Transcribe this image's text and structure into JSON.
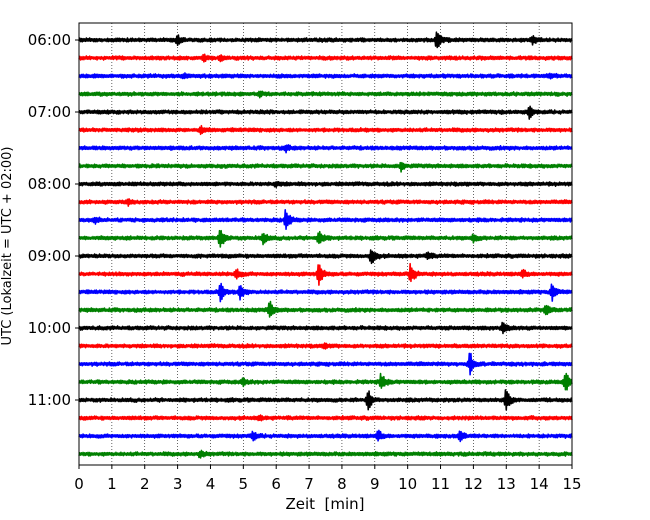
{
  "chart_data": {
    "type": "line",
    "title": "",
    "xlabel": "Zeit  [min]",
    "ylabel": "UTC (Lokalzeit = UTC + 02:00)",
    "xlim": [
      0,
      15
    ],
    "x_ticks": [
      "0",
      "1",
      "2",
      "3",
      "4",
      "5",
      "6",
      "7",
      "8",
      "9",
      "10",
      "11",
      "12",
      "13",
      "14",
      "15"
    ],
    "y_tick_labels": [
      "06:00",
      "07:00",
      "08:00",
      "09:00",
      "10:00",
      "11:00"
    ],
    "y_tick_traces": [
      0,
      4,
      8,
      12,
      16,
      20
    ],
    "grid": "vertical dotted at each minute",
    "legend": "none",
    "trace_colors": [
      "#000000",
      "#ff0000",
      "#0000ff",
      "#008000"
    ],
    "series": [
      {
        "start": "06:00",
        "color": "#000000",
        "events": [
          [
            3.0,
            0.35
          ],
          [
            10.9,
            1.0
          ],
          [
            13.8,
            0.35
          ]
        ]
      },
      {
        "start": "06:15",
        "color": "#ff0000",
        "events": [
          [
            3.8,
            0.3
          ],
          [
            4.3,
            0.25
          ]
        ]
      },
      {
        "start": "06:30",
        "color": "#0000ff",
        "events": [
          [
            3.2,
            0.2
          ],
          [
            14.3,
            0.2
          ]
        ]
      },
      {
        "start": "06:45",
        "color": "#008000",
        "events": [
          [
            5.5,
            0.15
          ]
        ]
      },
      {
        "start": "07:00",
        "color": "#000000",
        "events": [
          [
            13.7,
            0.6
          ]
        ]
      },
      {
        "start": "07:15",
        "color": "#ff0000",
        "events": [
          [
            3.7,
            0.3
          ]
        ]
      },
      {
        "start": "07:30",
        "color": "#0000ff",
        "events": [
          [
            6.3,
            0.25
          ]
        ]
      },
      {
        "start": "07:45",
        "color": "#008000",
        "events": [
          [
            9.8,
            0.35
          ]
        ]
      },
      {
        "start": "08:00",
        "color": "#000000",
        "events": [
          [
            6.0,
            0.2
          ]
        ]
      },
      {
        "start": "08:15",
        "color": "#ff0000",
        "events": [
          [
            1.5,
            0.2
          ]
        ]
      },
      {
        "start": "08:30",
        "color": "#0000ff",
        "events": [
          [
            0.5,
            0.25
          ],
          [
            6.3,
            0.9
          ]
        ]
      },
      {
        "start": "08:45",
        "color": "#008000",
        "events": [
          [
            4.3,
            0.9
          ],
          [
            5.6,
            0.55
          ],
          [
            7.3,
            0.65
          ],
          [
            12.0,
            0.3
          ]
        ]
      },
      {
        "start": "09:00",
        "color": "#000000",
        "events": [
          [
            8.9,
            0.8
          ],
          [
            10.6,
            0.3
          ]
        ]
      },
      {
        "start": "09:15",
        "color": "#ff0000",
        "events": [
          [
            4.8,
            0.4
          ],
          [
            7.3,
            1.0
          ],
          [
            10.1,
            0.9
          ],
          [
            13.5,
            0.35
          ]
        ]
      },
      {
        "start": "09:30",
        "color": "#0000ff",
        "events": [
          [
            4.3,
            0.8
          ],
          [
            4.9,
            0.75
          ],
          [
            14.4,
            0.75
          ]
        ]
      },
      {
        "start": "09:45",
        "color": "#008000",
        "events": [
          [
            5.8,
            0.75
          ],
          [
            14.2,
            0.6
          ]
        ]
      },
      {
        "start": "10:00",
        "color": "#000000",
        "events": [
          [
            12.9,
            0.45
          ]
        ]
      },
      {
        "start": "10:15",
        "color": "#ff0000",
        "events": [
          [
            7.5,
            0.2
          ]
        ]
      },
      {
        "start": "10:30",
        "color": "#0000ff",
        "events": [
          [
            11.9,
            1.0
          ]
        ]
      },
      {
        "start": "10:45",
        "color": "#008000",
        "events": [
          [
            5.0,
            0.3
          ],
          [
            9.2,
            0.8
          ],
          [
            14.8,
            1.0
          ]
        ]
      },
      {
        "start": "11:00",
        "color": "#000000",
        "events": [
          [
            8.8,
            0.9
          ],
          [
            13.0,
            1.0
          ]
        ]
      },
      {
        "start": "11:15",
        "color": "#ff0000",
        "events": [
          [
            5.5,
            0.15
          ]
        ]
      },
      {
        "start": "11:30",
        "color": "#0000ff",
        "events": [
          [
            5.3,
            0.35
          ],
          [
            9.1,
            0.5
          ],
          [
            11.6,
            0.4
          ]
        ]
      },
      {
        "start": "11:45",
        "color": "#008000",
        "events": [
          [
            3.7,
            0.3
          ]
        ]
      }
    ]
  }
}
